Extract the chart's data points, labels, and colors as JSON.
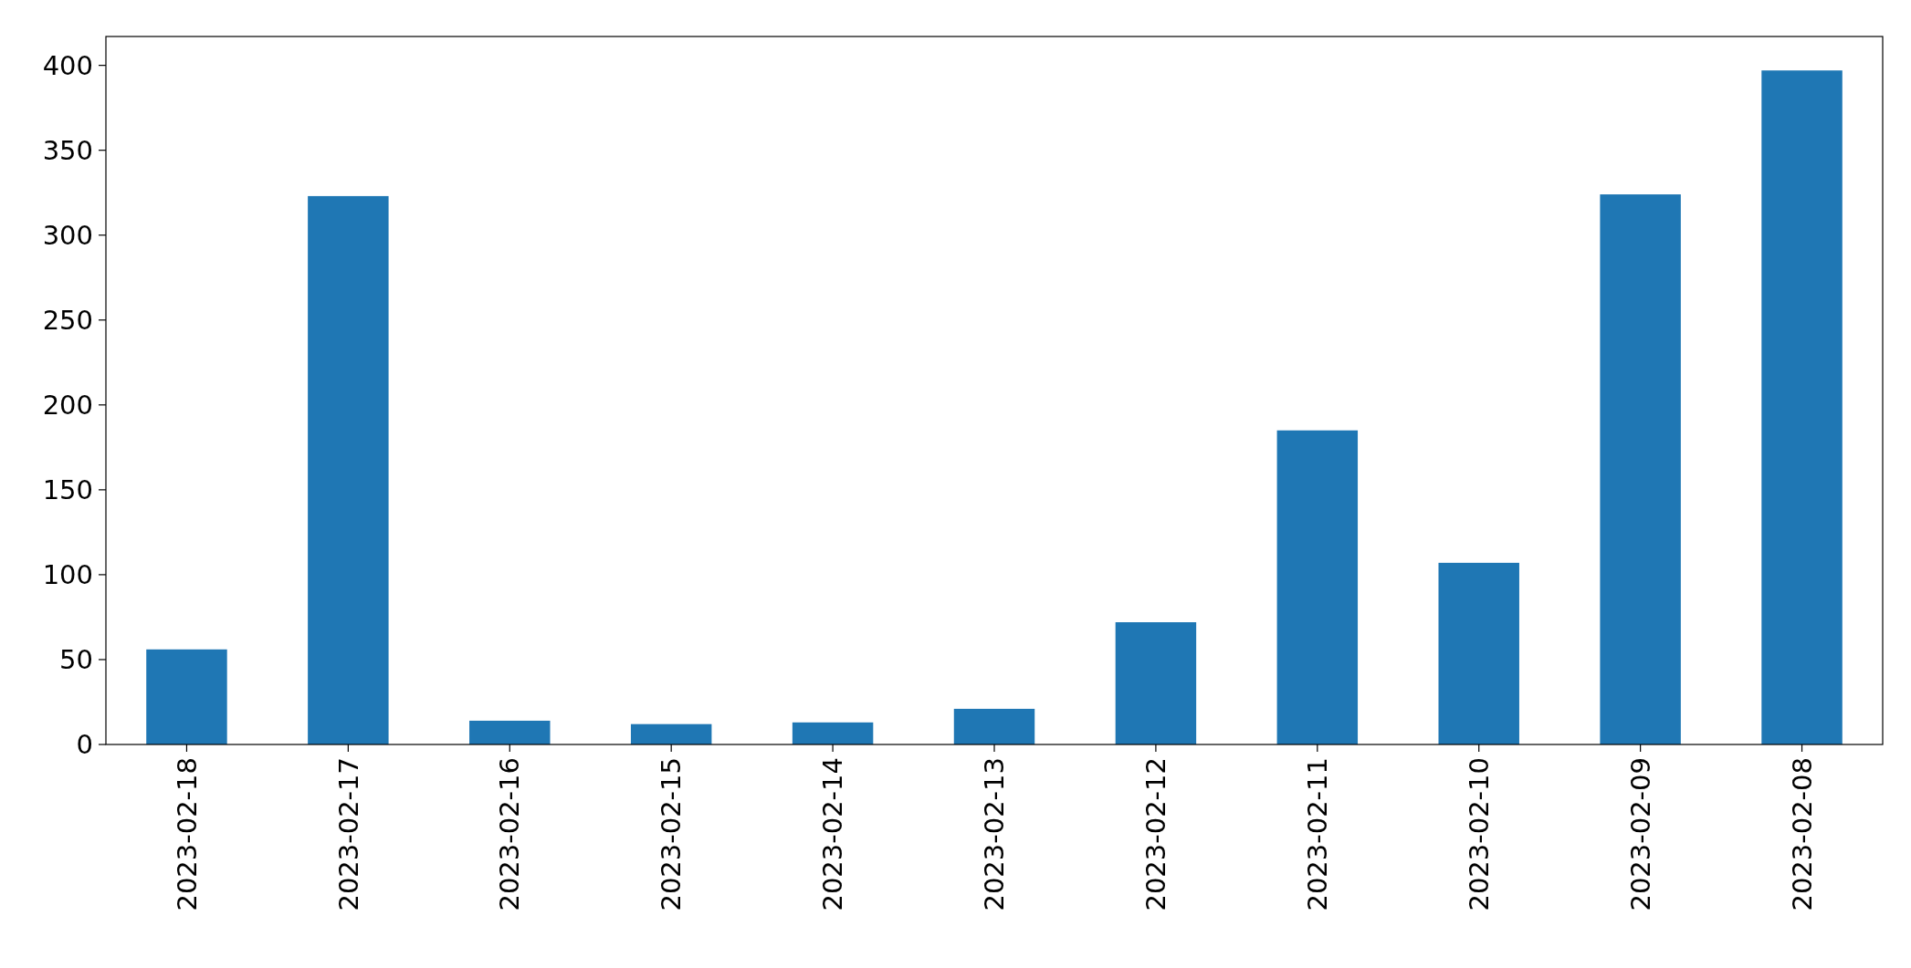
{
  "chart_data": {
    "type": "bar",
    "categories": [
      "2023-02-18",
      "2023-02-17",
      "2023-02-16",
      "2023-02-15",
      "2023-02-14",
      "2023-02-13",
      "2023-02-12",
      "2023-02-11",
      "2023-02-10",
      "2023-02-09",
      "2023-02-08"
    ],
    "values": [
      56,
      323,
      14,
      12,
      13,
      21,
      72,
      185,
      107,
      324,
      397
    ],
    "color": "#1f77b4",
    "ylim": [
      0,
      417
    ],
    "yticks": [
      0,
      50,
      100,
      150,
      200,
      250,
      300,
      350,
      400
    ]
  }
}
